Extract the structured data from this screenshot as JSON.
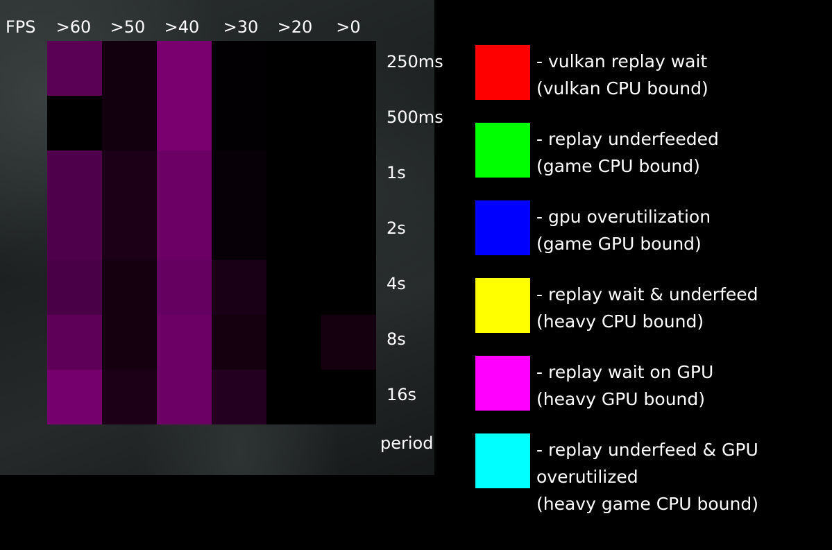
{
  "chart_data": {
    "type": "heatmap",
    "x_axis_label": "FPS",
    "x_categories": [
      ">60",
      ">50",
      ">40",
      ">30",
      ">20",
      ">0"
    ],
    "y_categories": [
      "250ms",
      "500ms",
      "1s",
      "2s",
      "4s",
      "8s",
      "16s"
    ],
    "y_axis_label": "period",
    "cell_colors": [
      [
        "#5a0055",
        "#12000f",
        "#7a0070",
        "#020002",
        "#000000",
        "#000000"
      ],
      [
        "#000000",
        "#12000f",
        "#7a0070",
        "#020002",
        "#000000",
        "#000000"
      ],
      [
        "#4e004a",
        "#1c0018",
        "#6c0065",
        "#080007",
        "#000000",
        "#000000"
      ],
      [
        "#4e004a",
        "#1c0018",
        "#6c0065",
        "#080007",
        "#000000",
        "#000000"
      ],
      [
        "#4a0046",
        "#14000f",
        "#660060",
        "#1a0016",
        "#000000",
        "#000000"
      ],
      [
        "#5e0058",
        "#14000f",
        "#6c0065",
        "#14000f",
        "#000000",
        "#14000f"
      ],
      [
        "#75006d",
        "#1c0018",
        "#6c0065",
        "#240020",
        "#000000",
        "#000000"
      ]
    ]
  },
  "legend": [
    {
      "color": "#ff0000",
      "line1": " - vulkan replay wait",
      "line2": " (vulkan CPU bound)",
      "line3": ""
    },
    {
      "color": "#00ff00",
      "line1": "- replay underfeeded",
      "line2": "(game CPU bound)",
      "line3": ""
    },
    {
      "color": "#0000ff",
      "line1": "- gpu overutilization",
      "line2": "(game GPU bound)",
      "line3": ""
    },
    {
      "color": "#ffff00",
      "line1": "- replay wait & underfeed",
      "line2": "(heavy CPU bound)",
      "line3": ""
    },
    {
      "color": "#ff00ff",
      "line1": "- replay wait on GPU",
      "line2": "(heavy GPU bound)",
      "line3": ""
    },
    {
      "color": "#00ffff",
      "line1": "- replay underfeed & GPU",
      "line2": "overutilized",
      "line3": "(heavy game CPU bound)"
    }
  ]
}
